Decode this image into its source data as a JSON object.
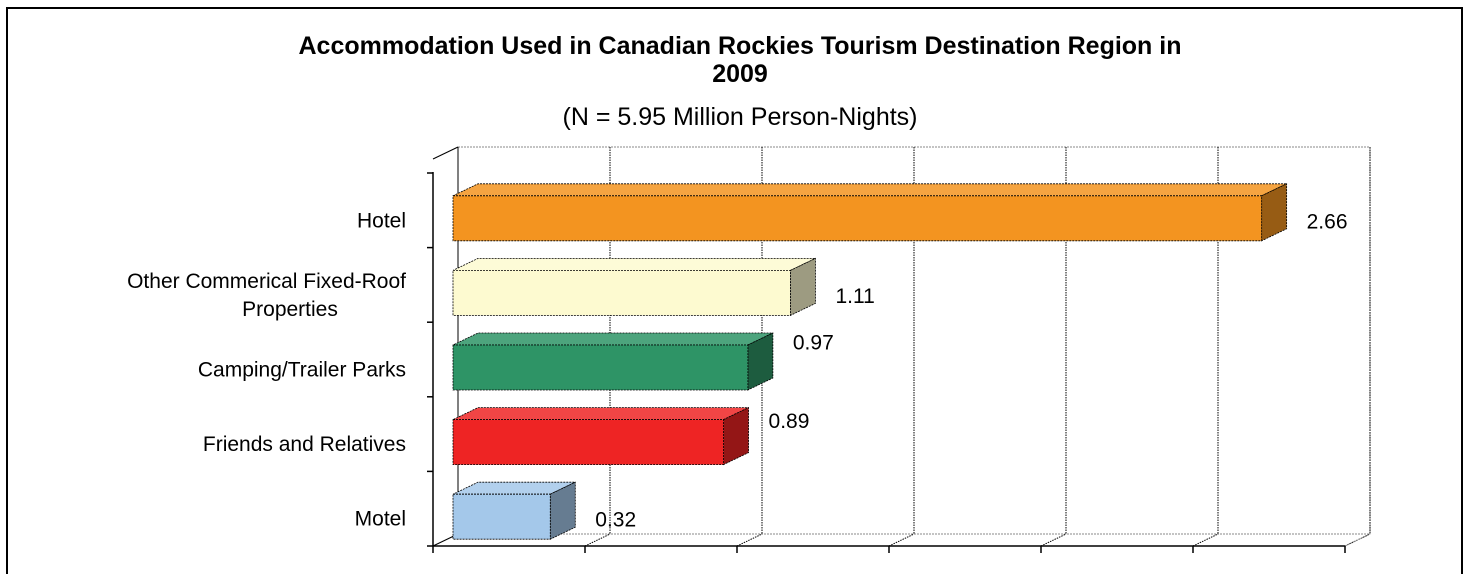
{
  "chart_data": {
    "type": "bar",
    "orientation": "horizontal",
    "three_d": true,
    "title_line1": "Accommodation Used in Canadian Rockies Tourism Destination Region in",
    "title_line2": "2009",
    "subtitle": "(N = 5.95 Million Person-Nights)",
    "categories": [
      "Hotel",
      "Other Commerical Fixed-Roof Properties",
      "Camping/Trailer Parks",
      "Friends and Relatives",
      "Motel"
    ],
    "category_lines": [
      [
        "Hotel"
      ],
      [
        "Other Commerical Fixed-Roof",
        "Properties"
      ],
      [
        "Camping/Trailer Parks"
      ],
      [
        "Friends and Relatives"
      ],
      [
        "Motel"
      ]
    ],
    "values": [
      2.66,
      1.11,
      0.97,
      0.89,
      0.32
    ],
    "data_labels": [
      "2.66",
      "1.11",
      "0.97",
      "0.89",
      "0.32"
    ],
    "bar_colors": [
      "#F39420",
      "#FDFAD0",
      "#2E9466",
      "#EE2424",
      "#A4C8EA"
    ],
    "xlim": [
      0,
      3.0
    ],
    "x_gridline_step": 0.5,
    "x_tick_labels_shown": false,
    "grid": true,
    "legend": "none",
    "xlabel": "",
    "ylabel": ""
  }
}
